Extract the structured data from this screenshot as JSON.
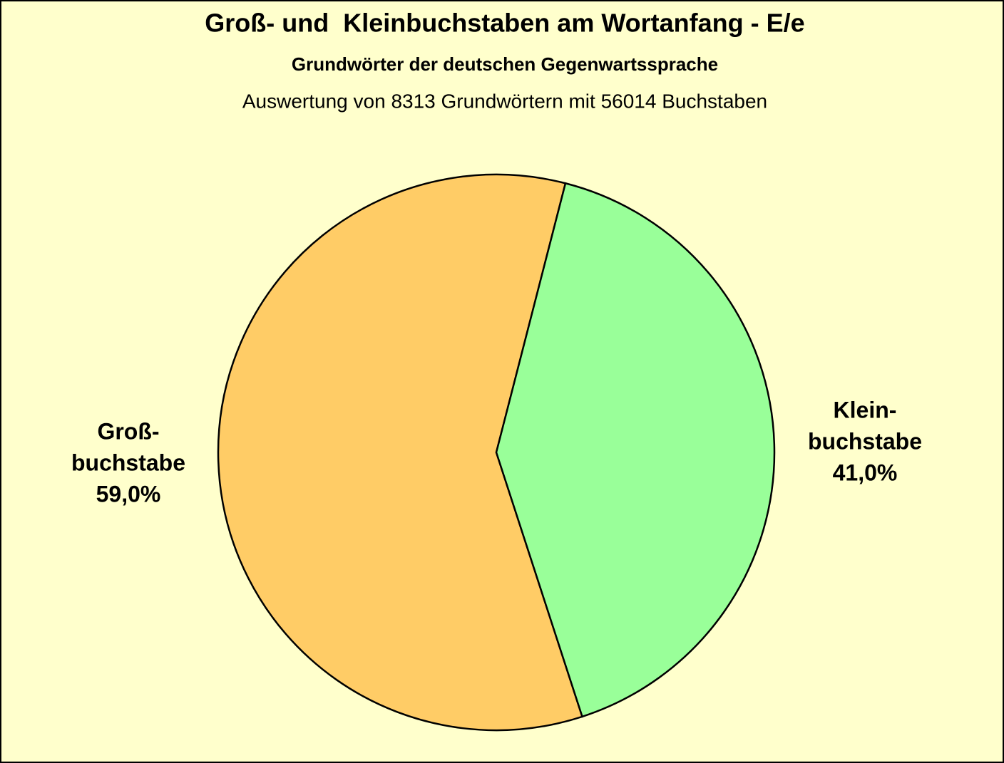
{
  "chart_data": {
    "type": "pie",
    "title": "Groß- und  Kleinbuchstaben am Wortanfang - E/e",
    "subtitle": "Grundwörter der deutschen Gegenwartssprache",
    "note": "Auswertung von 8313 Grundwörtern mit 56014 Buchstaben",
    "categories": [
      [
        "Groß-",
        "buchstabe"
      ],
      [
        "Klein-",
        "buchstabe"
      ]
    ],
    "values": [
      59.0,
      41.0
    ],
    "value_labels": [
      "59,0%",
      "41,0%"
    ],
    "colors": [
      "#ffcc66",
      "#99ff99"
    ]
  }
}
